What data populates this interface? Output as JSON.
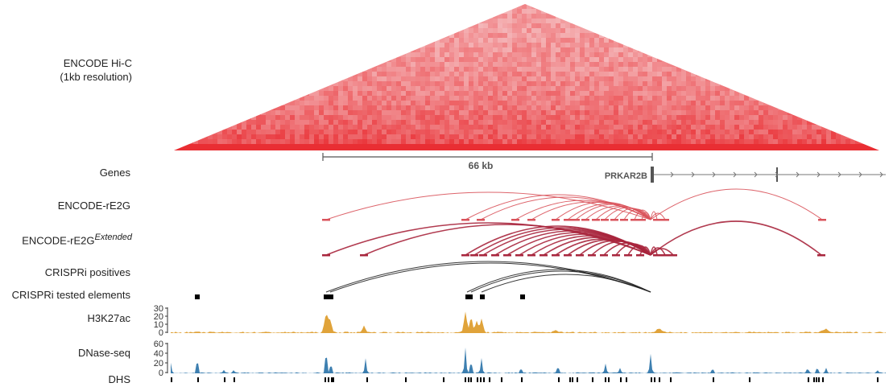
{
  "labels": {
    "hic_line1": "ENCODE Hi-C",
    "hic_line2": "(1kb resolution)",
    "genes": "Genes",
    "rE2G": "ENCODE-rE2G",
    "rE2G_ext_base": "ENCODE-rE2G",
    "rE2G_ext_sup": "Extended",
    "crispri_pos": "CRISPRi positives",
    "crispri_tested": "CRISPRi tested elements",
    "h3k27ac": "H3K27ac",
    "dnase": "DNase-seq",
    "dhs": "DHS"
  },
  "scale_bar": {
    "label": "66 kb"
  },
  "gene": {
    "name": "PRKAR2B"
  },
  "colors": {
    "hic": "#e8262b",
    "rE2G": "#d9535b",
    "rE2G_ext": "#a8263d",
    "crispri": "#222222",
    "h3k27ac": "#e0a33a",
    "dnase": "#3d7fb0",
    "gene": "#666666"
  },
  "h3k27ac_axis": {
    "ticks": [
      "30",
      "20",
      "10",
      "0"
    ]
  },
  "dnase_axis": {
    "ticks": [
      "60",
      "40",
      "20",
      "0"
    ]
  }
}
